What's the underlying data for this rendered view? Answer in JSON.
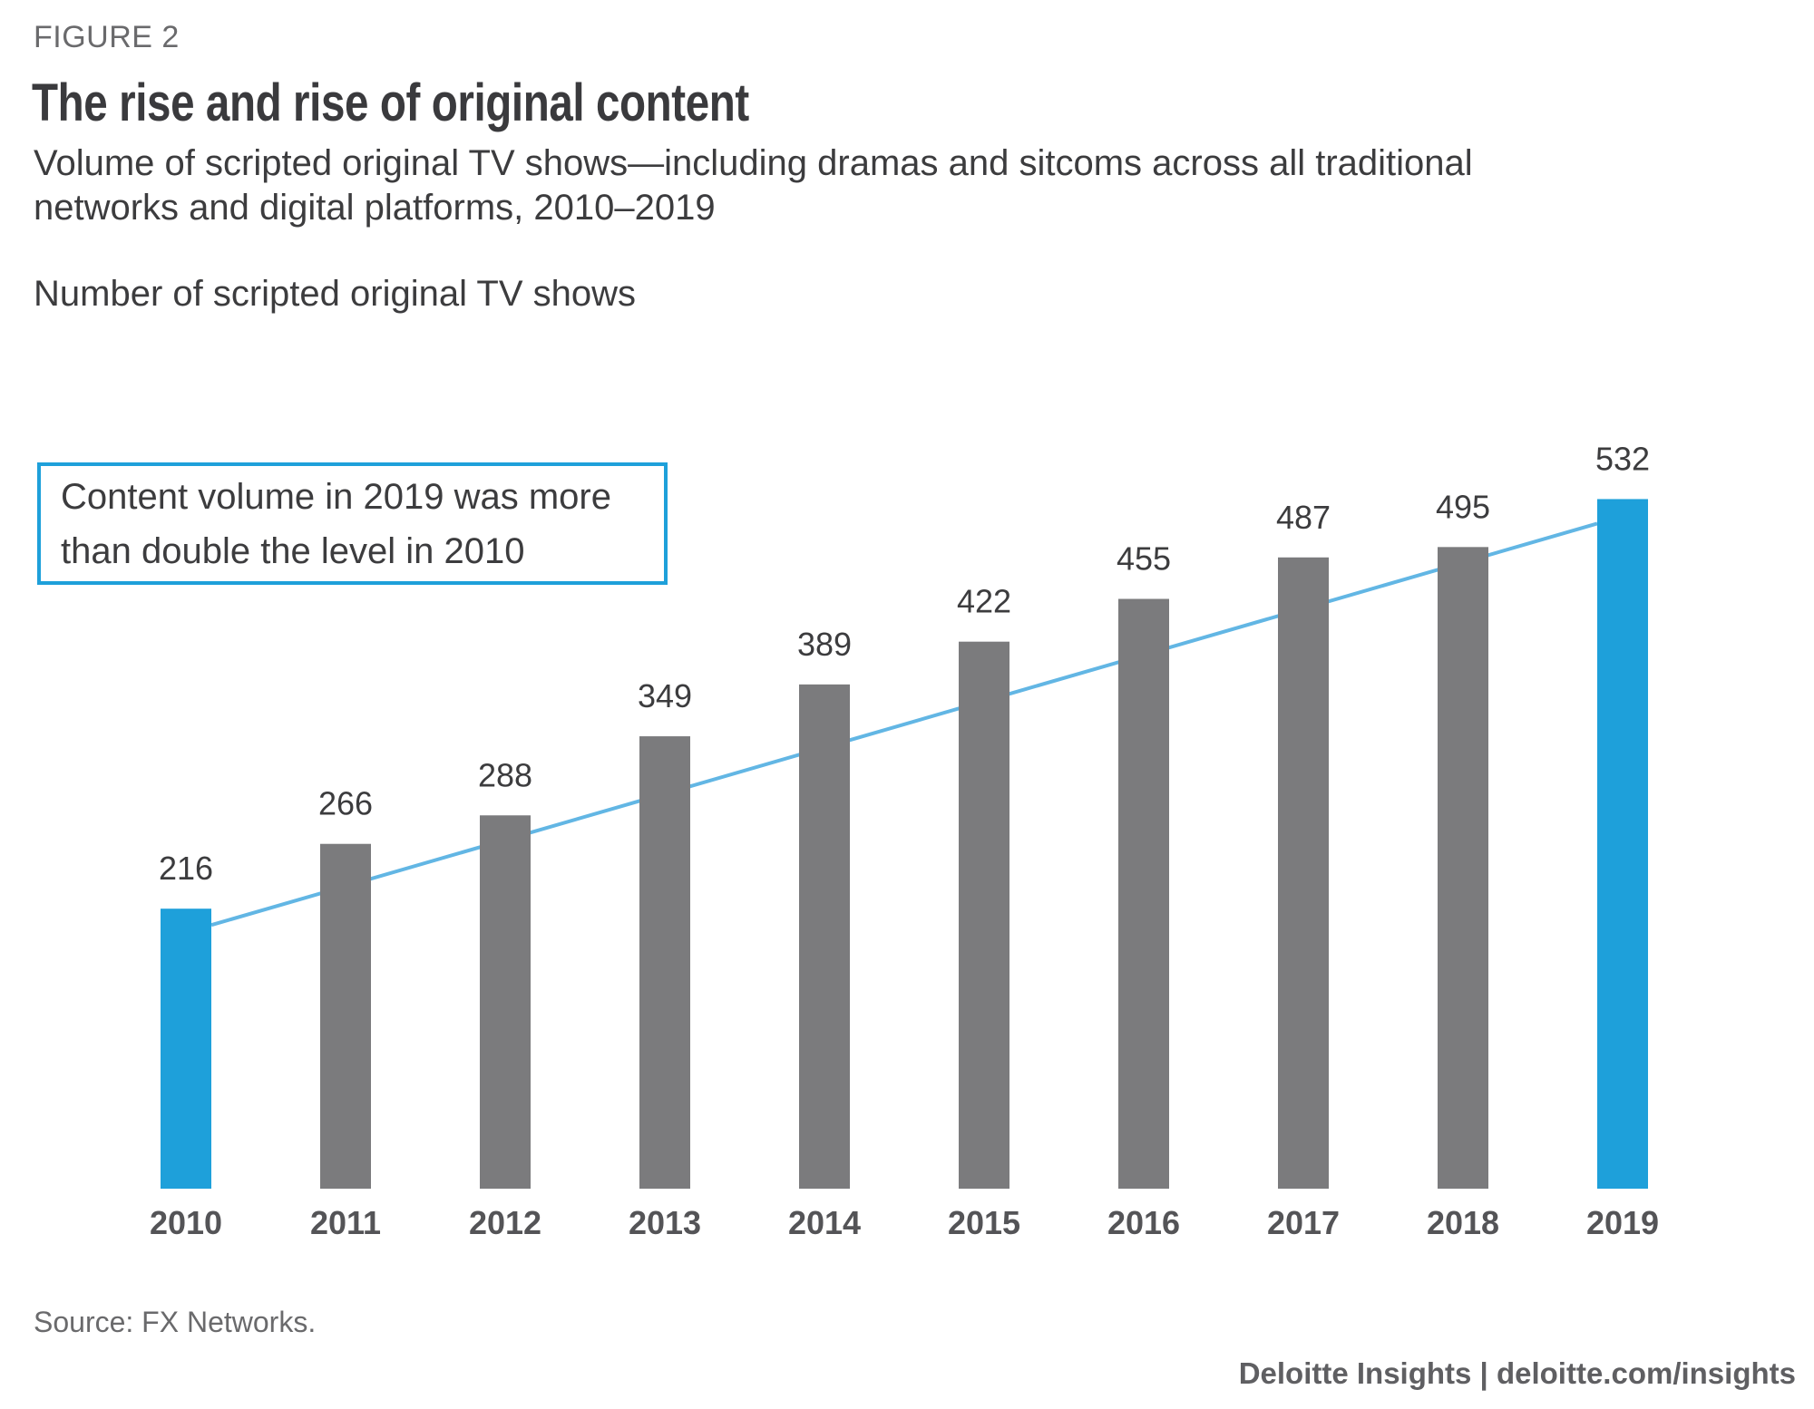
{
  "header": {
    "figure_label": "FIGURE 2",
    "title": "The rise and rise of original content",
    "subtitle_line1": "Volume of scripted original TV shows—including dramas and sitcoms across all traditional",
    "subtitle_line2": "networks and digital platforms, 2010–2019",
    "axis_caption": "Number of scripted original TV shows"
  },
  "annotation": {
    "line1": "Content volume in 2019 was more",
    "line2": "than double the level in 2010"
  },
  "footer": {
    "source": "Source: FX Networks.",
    "credit": "Deloitte Insights | deloitte.com/insights"
  },
  "colors": {
    "highlight_bar": "#1ea0da",
    "regular_bar": "#7b7b7d",
    "trend_line": "#62b6e4",
    "annotation_border": "#1ea0da"
  },
  "chart_data": {
    "type": "bar",
    "title": "The rise and rise of original content",
    "subtitle": "Volume of scripted original TV shows—including dramas and sitcoms across all traditional networks and digital platforms, 2010–2019",
    "xlabel": "",
    "ylabel": "Number of scripted original TV shows",
    "categories": [
      "2010",
      "2011",
      "2012",
      "2013",
      "2014",
      "2015",
      "2016",
      "2017",
      "2018",
      "2019"
    ],
    "values": [
      216,
      266,
      288,
      349,
      389,
      422,
      455,
      487,
      495,
      532
    ],
    "highlighted": [
      "2010",
      "2019"
    ],
    "data_labels": true,
    "ylim": [
      0,
      540
    ],
    "grid": false,
    "legend": "none",
    "trend_line": {
      "from": "2010",
      "to": "2019",
      "from_value": 216,
      "to_value": 532
    },
    "annotation": "Content volume in 2019 was more than double the level in 2010",
    "source": "Source: FX Networks."
  }
}
